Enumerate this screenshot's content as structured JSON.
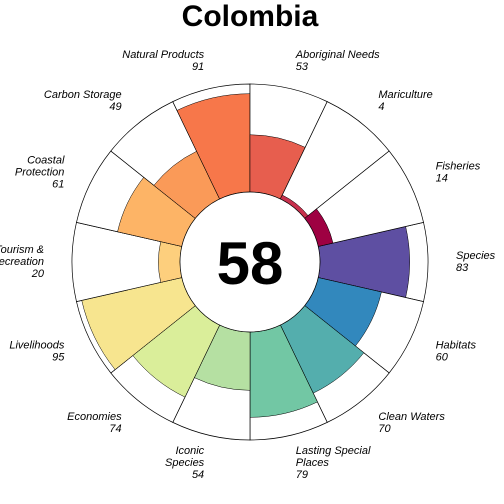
{
  "chart_data": {
    "type": "pie",
    "title": "Colombia",
    "center_score": "58",
    "value_range": [
      0,
      100
    ],
    "segments": [
      {
        "label_lines": [
          "Species"
        ],
        "value": 83,
        "value_text": "83",
        "color": "#5E4FA2"
      },
      {
        "label_lines": [
          "Habitats"
        ],
        "value": 60,
        "value_text": "60",
        "color": "#3288BD"
      },
      {
        "label_lines": [
          "Clean Waters"
        ],
        "value": 70,
        "value_text": "70",
        "color": "#54AEAD"
      },
      {
        "label_lines": [
          "Lasting Special",
          "Places"
        ],
        "value": 79,
        "value_text": "79",
        "color": "#72C7A4"
      },
      {
        "label_lines": [
          "Iconic",
          "Species"
        ],
        "value": 54,
        "value_text": "54",
        "color": "#B5E0A2"
      },
      {
        "label_lines": [
          "Economies"
        ],
        "value": 74,
        "value_text": "74",
        "color": "#DAEE9A"
      },
      {
        "label_lines": [
          "Livelihoods"
        ],
        "value": 95,
        "value_text": "95",
        "color": "#F7E58F"
      },
      {
        "label_lines": [
          "Tourism &",
          "Recreation"
        ],
        "value": 20,
        "value_text": "20",
        "color": "#FDCF7D"
      },
      {
        "label_lines": [
          "Coastal",
          "Protection"
        ],
        "value": 61,
        "value_text": "61",
        "color": "#FDB466"
      },
      {
        "label_lines": [
          "Carbon Storage"
        ],
        "value": 49,
        "value_text": "49",
        "color": "#FA9A58"
      },
      {
        "label_lines": [
          "Natural Products"
        ],
        "value": 91,
        "value_text": "91",
        "color": "#F7774A"
      },
      {
        "label_lines": [
          "Aboriginal Needs"
        ],
        "value": 53,
        "value_text": "53",
        "color": "#E75E4E"
      },
      {
        "label_lines": [
          "Mariculture"
        ],
        "value": 4,
        "value_text": "4",
        "color": "#C8314D"
      },
      {
        "label_lines": [
          "Fisheries"
        ],
        "value": 14,
        "value_text": "14",
        "color": "#9E0142"
      }
    ]
  }
}
